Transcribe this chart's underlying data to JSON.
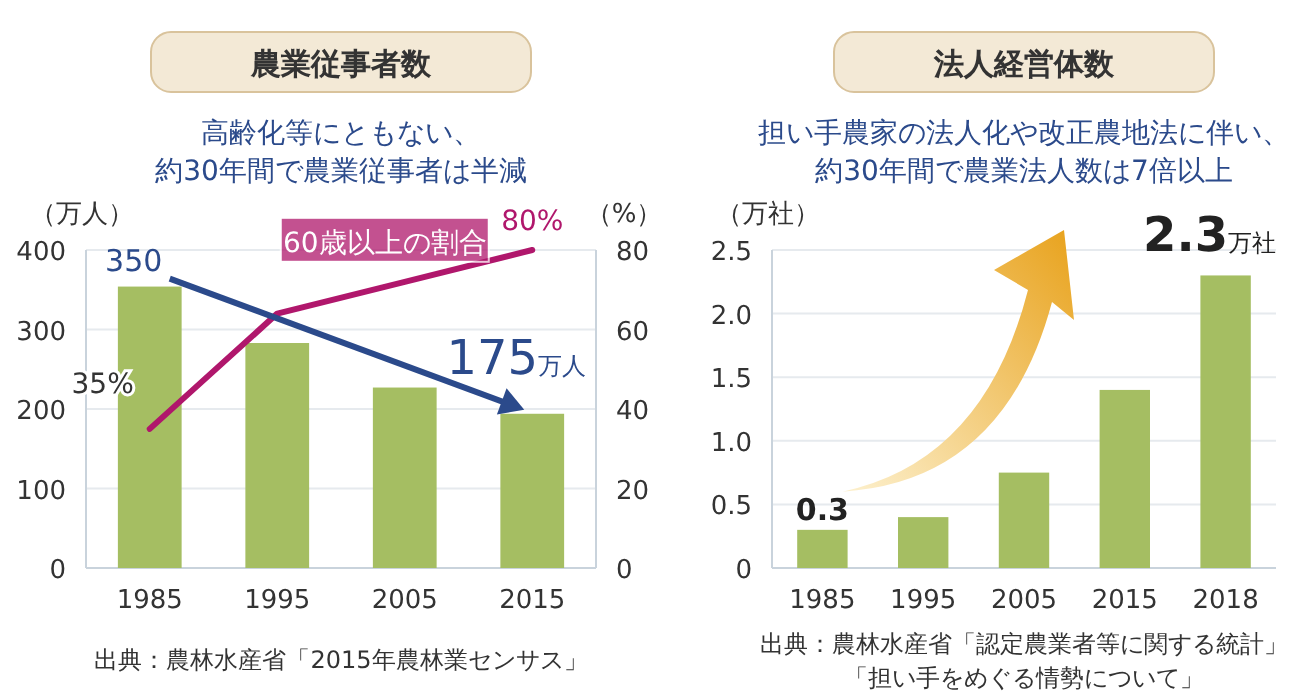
{
  "chart_data": [
    {
      "type": "bar",
      "title": "農業従事者数",
      "subtitle": "高齢化等にともない、約30年間で農業従事者は半減",
      "ylabel": "（万人）",
      "y2label": "（%）",
      "categories": [
        "1985",
        "1995",
        "2005",
        "2015"
      ],
      "series": [
        {
          "color": "#a5be62",
          "values": [
            354,
            283,
            227,
            194
          ]
        },
        {
          "type": "line",
          "name": "60歳以上の割合",
          "axis": "y2",
          "color": "#b0176c",
          "values": [
            35,
            64,
            72,
            80
          ],
          "value_labels": [
            "35%",
            null,
            null,
            "80%"
          ]
        }
      ],
      "ylim": [
        0,
        400
      ],
      "yticks": [
        0,
        100,
        200,
        300,
        400
      ],
      "y2lim": [
        0,
        80
      ],
      "y2ticks": [
        0,
        20,
        40,
        60,
        80
      ],
      "grid": "y",
      "annotations": [
        "350",
        "175万人",
        "出典：農林水産省「2015年農林業センサス」"
      ]
    },
    {
      "type": "bar",
      "title": "法人経営体数",
      "subtitle": "担い手農家の法人化や改正農地法に伴い、約30年間で農業法人数は7倍以上",
      "ylabel": "（万社）",
      "categories": [
        "1985",
        "1995",
        "2005",
        "2015",
        "2018"
      ],
      "values": [
        0.3,
        0.4,
        0.75,
        1.4,
        2.3
      ],
      "color": "#a5be62",
      "value_labels": [
        "0.3",
        null,
        null,
        null,
        "2.3万社"
      ],
      "ylim": [
        0,
        2.5
      ],
      "yticks": [
        0,
        0.5,
        {
          "value": 1,
          "label": "1.0"
        },
        1.5,
        {
          "value": 2,
          "label": "2.0"
        },
        2.5
      ],
      "grid": "y",
      "annotations": [
        "出典：農林水産省「認定農業者等に関する統計」「担い手をめぐる情勢について」"
      ]
    }
  ]
}
